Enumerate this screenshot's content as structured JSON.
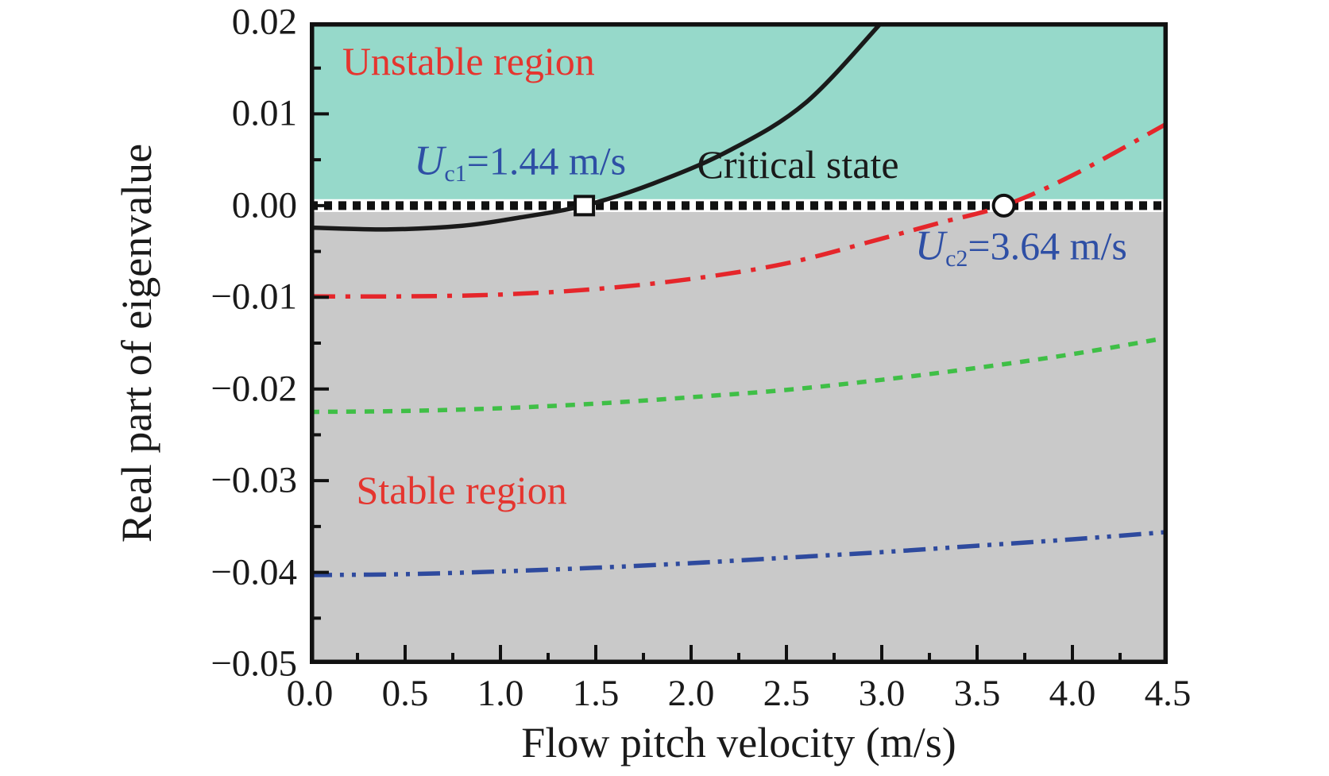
{
  "colors": {
    "unstable_fill": "#96d9ca",
    "stable_fill": "#c9c9c9",
    "critical_line": "#111111",
    "axis": "#111111",
    "red_text": "#e5352f",
    "blue_text": "#2e4fa5"
  },
  "annotations": {
    "unstable": "Unstable region",
    "stable": "Stable region",
    "critical": "Critical state",
    "uc1": {
      "sym": "U",
      "sub": "c1",
      "rest": "=1.44 m/s"
    },
    "uc2": {
      "sym": "U",
      "sub": "c2",
      "rest": "=3.64 m/s"
    }
  },
  "chart_data": {
    "type": "line",
    "title": "",
    "xlabel": "Flow pitch velocity (m/s)",
    "ylabel": "Real part of eigenvalue",
    "xlim": [
      0,
      4.5
    ],
    "ylim": [
      -0.05,
      0.02
    ],
    "grid": false,
    "legend": false,
    "x_ticks": {
      "labels": [
        "0.0",
        "0.5",
        "1.0",
        "1.5",
        "2.0",
        "2.5",
        "3.0",
        "3.5",
        "4.0",
        "4.5"
      ],
      "values": [
        0,
        0.5,
        1.0,
        1.5,
        2.0,
        2.5,
        3.0,
        3.5,
        4.0,
        4.5
      ],
      "minor_step": 0.25
    },
    "y_ticks": {
      "labels": [
        "0.02",
        "0.01",
        "0.00",
        "−0.01",
        "−0.02",
        "−0.03",
        "−0.04",
        "−0.05"
      ],
      "values": [
        0.02,
        0.01,
        0.0,
        -0.01,
        -0.02,
        -0.03,
        -0.04,
        -0.05
      ],
      "minor_step": 0.005
    },
    "series": [
      {
        "name": "mode-1-black-solid",
        "color": "#1a1a1a",
        "style": "solid",
        "points": [
          [
            0,
            -0.0024
          ],
          [
            0.4,
            -0.0026
          ],
          [
            0.8,
            -0.0022
          ],
          [
            1.1,
            -0.0013
          ],
          [
            1.44,
            0
          ],
          [
            1.8,
            0.0024
          ],
          [
            2.2,
            0.006
          ],
          [
            2.6,
            0.0112
          ],
          [
            3.0,
            0.02
          ]
        ]
      },
      {
        "name": "mode-2-red-dash-dot",
        "color": "#e5262b",
        "style": "dash-dot",
        "points": [
          [
            0,
            -0.0099
          ],
          [
            0.5,
            -0.0099
          ],
          [
            1.0,
            -0.0097
          ],
          [
            1.5,
            -0.0091
          ],
          [
            2.0,
            -0.008
          ],
          [
            2.5,
            -0.0063
          ],
          [
            3.0,
            -0.0036
          ],
          [
            3.3,
            -0.0019
          ],
          [
            3.64,
            0
          ],
          [
            4.0,
            0.0033
          ],
          [
            4.5,
            0.009
          ]
        ]
      },
      {
        "name": "mode-3-green-dotted",
        "color": "#3fbf46",
        "style": "dotted",
        "points": [
          [
            0,
            -0.0225
          ],
          [
            0.5,
            -0.0224
          ],
          [
            1.0,
            -0.0221
          ],
          [
            1.5,
            -0.0216
          ],
          [
            2.0,
            -0.0209
          ],
          [
            2.5,
            -0.0201
          ],
          [
            3.0,
            -0.019
          ],
          [
            3.5,
            -0.0177
          ],
          [
            4.0,
            -0.0162
          ],
          [
            4.5,
            -0.0144
          ]
        ]
      },
      {
        "name": "mode-4-blue-dash-dot-dot",
        "color": "#2e4a9e",
        "style": "dash-dot-dot",
        "points": [
          [
            0,
            -0.0403
          ],
          [
            0.5,
            -0.0402
          ],
          [
            1.0,
            -0.0399
          ],
          [
            1.5,
            -0.0395
          ],
          [
            2.0,
            -0.039
          ],
          [
            2.5,
            -0.0384
          ],
          [
            3.0,
            -0.0378
          ],
          [
            3.5,
            -0.0371
          ],
          [
            4.0,
            -0.0364
          ],
          [
            4.5,
            -0.0356
          ]
        ]
      }
    ],
    "reference_line": {
      "label": "Critical state",
      "y": 0,
      "style": "square-dotted",
      "color": "#111111"
    },
    "markers": [
      {
        "shape": "square",
        "x": 1.44,
        "y": 0,
        "label": "Uc1=1.44 m/s"
      },
      {
        "shape": "circle",
        "x": 3.64,
        "y": 0,
        "label": "Uc2=3.64 m/s"
      }
    ]
  }
}
